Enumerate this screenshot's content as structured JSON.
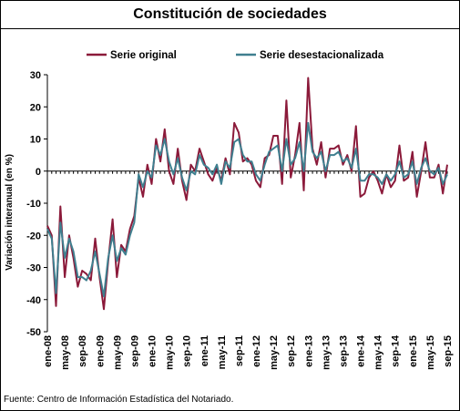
{
  "chart_data": {
    "type": "line",
    "title": "Constitución de sociedades",
    "ylabel": "Variación interanual (en %)",
    "xlabel": "",
    "ylim": [
      -50,
      30
    ],
    "yticks": [
      30,
      20,
      10,
      0,
      -10,
      -20,
      -30,
      -40,
      -50
    ],
    "legend_position": "top",
    "grid": false,
    "x_tick_labels": [
      "ene-08",
      "may-08",
      "sep-08",
      "ene-09",
      "may-09",
      "sep-09",
      "ene-10",
      "may-10",
      "sep-10",
      "ene-11",
      "may-11",
      "sep-11",
      "ene-12",
      "may-12",
      "sep-12",
      "ene-13",
      "may-13",
      "sep-13",
      "ene-14",
      "may-14",
      "sep-14",
      "ene-15",
      "may-15",
      "sep-15"
    ],
    "x_start": "ene-08",
    "series": [
      {
        "name": "Serie original",
        "color": "#8b1a3a",
        "values": [
          -17,
          -20,
          -42,
          -11,
          -33,
          -20,
          -27,
          -36,
          -31,
          -32,
          -34,
          -21,
          -33,
          -43,
          -28,
          -15,
          -33,
          -23,
          -25,
          -18,
          -14,
          -2,
          -8,
          2,
          -4,
          10,
          3,
          13,
          0,
          -4,
          7,
          -3,
          -9,
          2,
          0,
          7,
          3,
          -1,
          -3,
          1,
          -3,
          4,
          -1,
          15,
          12,
          3,
          4,
          2,
          -3,
          -5,
          4,
          5,
          11,
          11,
          -4,
          22,
          -2,
          5,
          15,
          -6,
          29,
          7,
          2,
          9,
          -2,
          7,
          7,
          8,
          2,
          5,
          0,
          14,
          -8,
          -7,
          -2,
          0,
          -3,
          -7,
          -1,
          -5,
          -3,
          8,
          -3,
          -2,
          6,
          -8,
          0,
          9,
          -2,
          -2,
          2,
          -7,
          2
        ],
        "values_are_estimated_monthly": true
      },
      {
        "name": "Serie desestacionalizada",
        "color": "#3f7f8f",
        "values": [
          -18,
          -21,
          -38,
          -16,
          -27,
          -21,
          -25,
          -33,
          -33,
          -34,
          -31,
          -25,
          -32,
          -39,
          -27,
          -20,
          -28,
          -24,
          -26,
          -20,
          -16,
          -1,
          -5,
          0,
          -2,
          8,
          5,
          10,
          3,
          -1,
          4,
          -2,
          -6,
          0,
          -1,
          5,
          2,
          1,
          -1,
          2,
          -4,
          3,
          1,
          9,
          10,
          5,
          3,
          3,
          -1,
          -3,
          2,
          6,
          7,
          8,
          0,
          10,
          2,
          4,
          9,
          0,
          15,
          6,
          4,
          6,
          0,
          5,
          5,
          6,
          3,
          4,
          1,
          7,
          -3,
          -3,
          -1,
          -1,
          -2,
          -4,
          -1,
          -3,
          -1,
          3,
          -2,
          -1,
          3,
          -4,
          1,
          4,
          0,
          -1,
          1,
          -4,
          -1
        ],
        "values_are_estimated_monthly": true
      }
    ]
  },
  "source_note": "Fuente: Centro de Información Estadística del Notariado."
}
